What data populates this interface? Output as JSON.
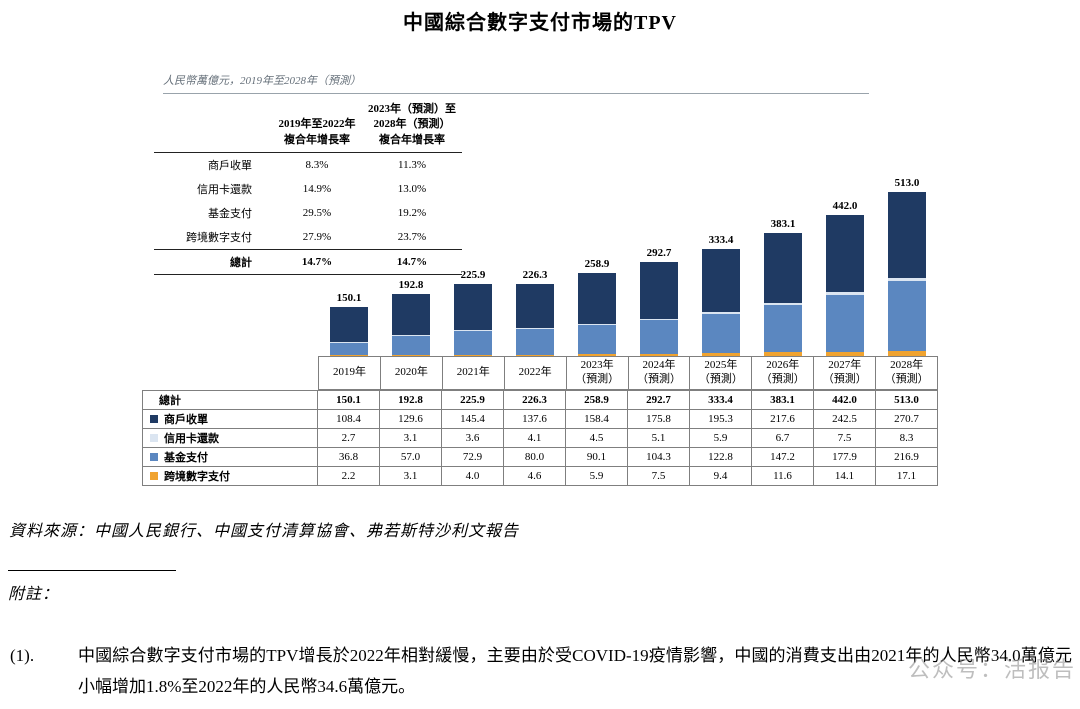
{
  "page": {
    "title": "中國綜合數字支付市場的TPV"
  },
  "figure": {
    "unit_note": "人民幣萬億元，2019年至2028年（預測）"
  },
  "cagr_table": {
    "col1_header": "2019年至2022年\n複合年增長率",
    "col2_header": "2023年（預測）至\n2028年（預測）\n複合年增長率",
    "rows": [
      {
        "label": "商戶收單",
        "cagr_2019_2022": "8.3%",
        "cagr_2023_2028": "11.3%"
      },
      {
        "label": "信用卡還款",
        "cagr_2019_2022": "14.9%",
        "cagr_2023_2028": "13.0%"
      },
      {
        "label": "基金支付",
        "cagr_2019_2022": "29.5%",
        "cagr_2023_2028": "19.2%"
      },
      {
        "label": "跨境數字支付",
        "cagr_2019_2022": "27.9%",
        "cagr_2023_2028": "23.7%"
      }
    ],
    "total_row": {
      "label": "總計",
      "cagr_2019_2022": "14.7%",
      "cagr_2023_2028": "14.7%"
    }
  },
  "chart_data": {
    "type": "bar",
    "stacked": true,
    "title": "中國綜合數字支付市場的TPV",
    "unit": "人民幣萬億元",
    "ylim": [
      0,
      513
    ],
    "legend_position": "table-left",
    "grid": false,
    "categories": [
      "2019年",
      "2020年",
      "2021年",
      "2022年",
      "2023年\n（預測）",
      "2024年\n（預測）",
      "2025年\n（預測）",
      "2026年\n（預測）",
      "2027年\n（預測）",
      "2028年\n（預測）"
    ],
    "total_label": "總計",
    "totals": [
      150.1,
      192.8,
      225.9,
      226.3,
      258.9,
      292.7,
      333.4,
      383.1,
      442.0,
      513.0
    ],
    "series": [
      {
        "name": "商戶收單",
        "color": "#1f3a63",
        "values": [
          108.4,
          129.6,
          145.4,
          137.6,
          158.4,
          175.8,
          195.3,
          217.6,
          242.5,
          270.7
        ]
      },
      {
        "name": "信用卡還款",
        "color": "#dbe5f1",
        "values": [
          2.7,
          3.1,
          3.6,
          4.1,
          4.5,
          5.1,
          5.9,
          6.7,
          7.5,
          8.3
        ]
      },
      {
        "name": "基金支付",
        "color": "#5b87c0",
        "values": [
          36.8,
          57.0,
          72.9,
          80.0,
          90.1,
          104.3,
          122.8,
          147.2,
          177.9,
          216.9
        ]
      },
      {
        "name": "跨境數字支付",
        "color": "#f0a330",
        "values": [
          2.2,
          3.1,
          4.0,
          4.6,
          5.9,
          7.5,
          9.4,
          11.6,
          14.1,
          17.1
        ]
      }
    ]
  },
  "footer": {
    "source": "資料來源：中國人民銀行、中國支付清算協會、弗若斯特沙利文報告",
    "notes_label": "附註：",
    "note1": {
      "number": "(1).",
      "text": "中國綜合數字支付市場的TPV增長於2022年相對緩慢，主要由於受COVID-19疫情影響，中國的消費支出由2021年的人民幣34.0萬億元小幅增加1.8%至2022年的人民幣34.6萬億元。"
    }
  },
  "watermark": {
    "text": "公众号：活报告"
  }
}
